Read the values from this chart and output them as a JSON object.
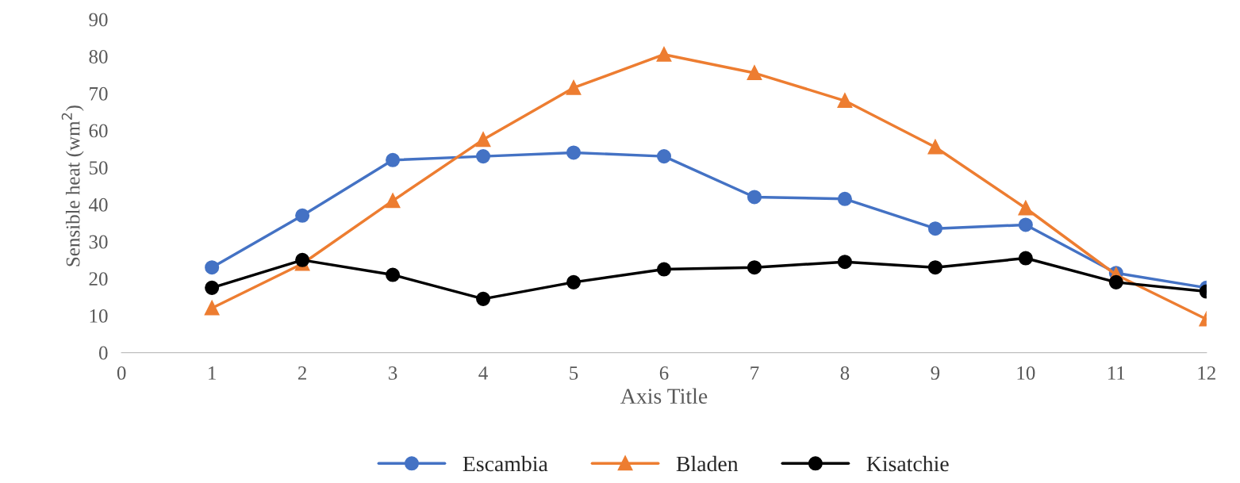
{
  "chart_data": {
    "type": "line",
    "xlabel": "Axis Title",
    "ylabel": "Sensible heat (wm$^{2}$)",
    "x": [
      1,
      2,
      3,
      4,
      5,
      6,
      7,
      8,
      9,
      10,
      11,
      12
    ],
    "series": [
      {
        "name": "Escambia",
        "color": "#4472c4",
        "marker": "circle",
        "values": [
          23,
          37,
          52,
          53,
          54,
          53,
          42,
          41.5,
          33.5,
          34.5,
          21.5,
          17.5
        ]
      },
      {
        "name": "Bladen",
        "color": "#ed7d31",
        "marker": "triangle",
        "values": [
          12,
          24,
          41,
          57.5,
          71.5,
          80.5,
          75.5,
          68,
          55.5,
          39,
          21,
          9
        ]
      },
      {
        "name": "Kisatchie",
        "color": "#000000",
        "marker": "circle",
        "values": [
          17.5,
          25,
          21,
          14.5,
          19,
          22.5,
          23,
          24.5,
          23,
          25.5,
          19,
          16.5
        ]
      }
    ],
    "xlim": [
      0,
      12
    ],
    "xticks": [
      0,
      1,
      2,
      3,
      4,
      5,
      6,
      7,
      8,
      9,
      10,
      11,
      12
    ],
    "ylim": [
      0,
      90
    ],
    "yticks": [
      0,
      10,
      20,
      30,
      40,
      50,
      60,
      70,
      80,
      90
    ],
    "grid": false,
    "legend": "bottom",
    "line_style": "solid"
  }
}
